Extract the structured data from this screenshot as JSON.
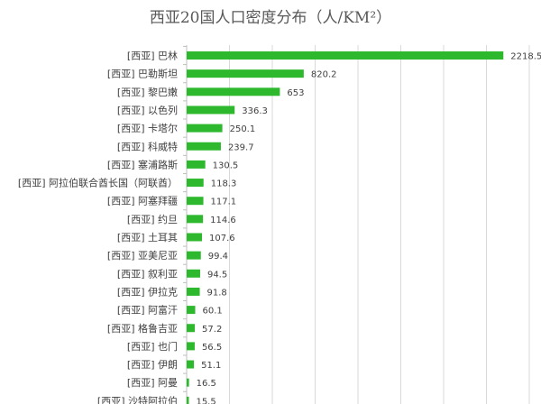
{
  "chart_data": {
    "type": "bar",
    "orientation": "horizontal",
    "title": "西亚20国人口密度分布（人/KM²）",
    "xlim": [
      0,
      2400
    ],
    "grid": true,
    "legend": "none",
    "bar_color": "#2DB82D",
    "grid_color": "#D9D9D9",
    "categories": [
      "[西亚] 巴林",
      "[西亚] 巴勒斯坦",
      "[西亚] 黎巴嫩",
      "[西亚] 以色列",
      "[西亚] 卡塔尔",
      "[西亚] 科威特",
      "[西亚] 塞浦路斯",
      "[西亚] 阿拉伯联合酋长国（阿联酋）",
      "[西亚] 阿塞拜疆",
      "[西亚] 约旦",
      "[西亚] 土耳其",
      "[西亚] 亚美尼亚",
      "[西亚] 叙利亚",
      "[西亚] 伊拉克",
      "[西亚] 阿富汗",
      "[西亚] 格鲁吉亚",
      "[西亚] 也门",
      "[西亚] 伊朗",
      "[西亚] 阿曼",
      "[西亚] 沙特阿拉伯"
    ],
    "values": [
      2218.5,
      820.2,
      653,
      336.3,
      250.1,
      239.7,
      130.5,
      118.3,
      117.1,
      114.6,
      107.6,
      99.4,
      94.5,
      91.8,
      60.1,
      57.2,
      56.5,
      51.1,
      16.5,
      15.5
    ],
    "value_labels": [
      "2218.5",
      "820.2",
      "653",
      "336.3",
      "250.1",
      "239.7",
      "130.5",
      "118.3",
      "117.1",
      "114.6",
      "107.6",
      "99.4",
      "94.5",
      "91.8",
      "60.1",
      "57.2",
      "56.5",
      "51.1",
      "16.5",
      "15.5"
    ]
  }
}
